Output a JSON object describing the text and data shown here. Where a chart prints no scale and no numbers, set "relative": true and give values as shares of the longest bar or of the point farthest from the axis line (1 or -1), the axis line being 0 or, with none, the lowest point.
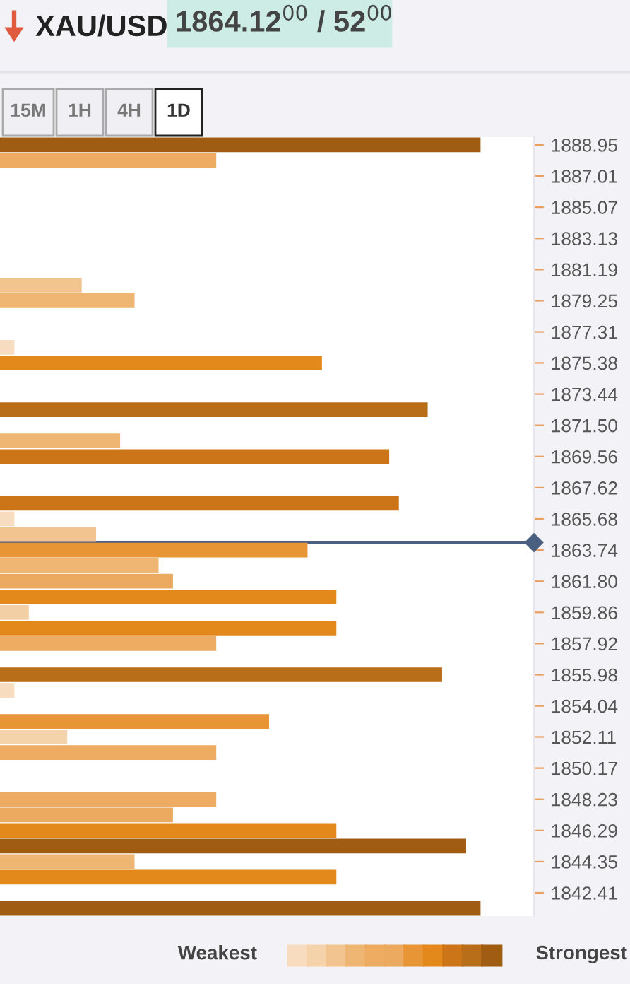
{
  "chart_data": {
    "type": "bar",
    "orientation": "horizontal",
    "relative": true,
    "title": "XAU/USD",
    "subtitle": "1864.12$^{00}$ / 52$^{00}$",
    "annotations": [
      "15M",
      "1H",
      "4H",
      "1D",
      "Weakest",
      "Strongest"
    ],
    "x": [
      1888.95,
      1887.98,
      1880.22,
      1879.25,
      1876.35,
      1875.38,
      1872.47,
      1870.53,
      1869.56,
      1866.65,
      1865.68,
      1864.71,
      1863.74,
      1862.77,
      1861.8,
      1860.83,
      1859.86,
      1858.89,
      1857.92,
      1855.98,
      1855.01,
      1853.07,
      1852.11,
      1851.14,
      1848.23,
      1847.26,
      1846.29,
      1845.32,
      1844.35,
      1843.38,
      1841.44
    ],
    "values": [
      1.0,
      0.45,
      0.17,
      0.28,
      0.03,
      0.67,
      0.89,
      0.25,
      0.81,
      0.83,
      0.03,
      0.2,
      0.64,
      0.33,
      0.36,
      0.7,
      0.06,
      0.7,
      0.45,
      0.92,
      0.03,
      0.56,
      0.14,
      0.45,
      0.45,
      0.36,
      0.7,
      0.97,
      0.28,
      0.7,
      1.0
    ],
    "colors": [
      "#a05c12",
      "#edac62",
      "#f2c590",
      "#efb673",
      "#f8dcc0",
      "#e3891c",
      "#b86d19",
      "#efb673",
      "#cc7418",
      "#cc7418",
      "#f8dcc0",
      "#f2c590",
      "#e89535",
      "#efb673",
      "#ebaa5f",
      "#e3891c",
      "#f2cfa5",
      "#e3891c",
      "#edac62",
      "#b86d19",
      "#f8dcc0",
      "#e89535",
      "#f5d3aa",
      "#edac62",
      "#edac62",
      "#ebaa5f",
      "#e3891c",
      "#a05c12",
      "#efb673",
      "#e3891c",
      "#a05c12"
    ],
    "ylim": [
      1840.96,
      1889.43
    ],
    "yticks": [
      1888.95,
      1887.01,
      1885.07,
      1883.13,
      1881.19,
      1879.25,
      1877.31,
      1875.38,
      1873.44,
      {
        "value": 1871.5,
        "label": "1871.50"
      },
      1869.56,
      1867.62,
      1865.68,
      1863.74,
      {
        "value": 1861.8,
        "label": "1861.80"
      },
      1859.86,
      1857.92,
      1855.98,
      1854.04,
      1852.11,
      1850.17,
      1848.23,
      1846.29,
      1844.35,
      1842.41
    ],
    "ref_lines": [
      {
        "axis": "y",
        "value": 1864.2,
        "color": "#4a6080"
      }
    ],
    "grid": false,
    "legend": false
  }
}
